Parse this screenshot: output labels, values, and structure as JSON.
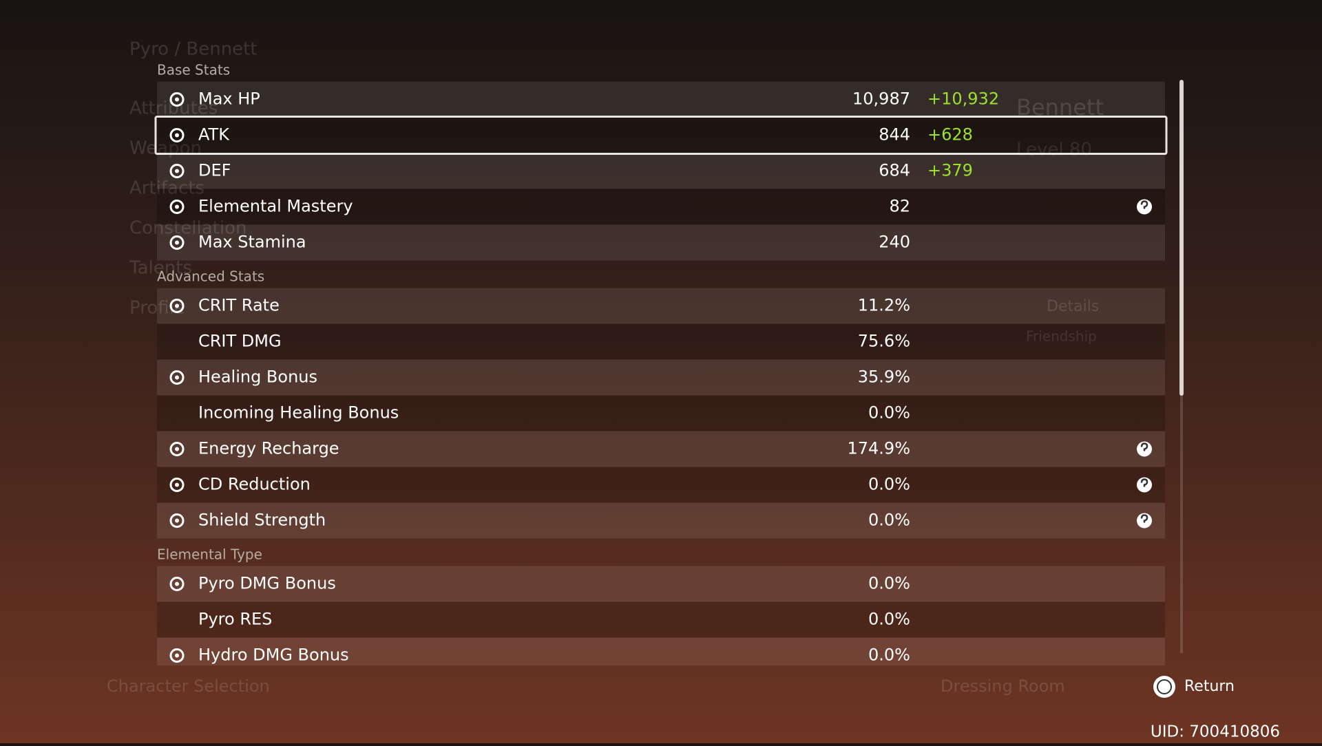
{
  "header": {
    "breadcrumb": "Pyro / Bennett"
  },
  "side_menu": [
    "Attributes",
    "Weapon",
    "Artifacts",
    "Constellation",
    "Talents",
    "Profile"
  ],
  "sections": [
    {
      "title": "Base Stats",
      "rows": [
        {
          "label": "Max HP",
          "value": "10,987",
          "bonus": "+10,932"
        },
        {
          "label": "ATK",
          "value": "844",
          "bonus": "+628"
        },
        {
          "label": "DEF",
          "value": "684",
          "bonus": "+379"
        },
        {
          "label": "Elemental Mastery",
          "value": "82"
        },
        {
          "label": "Max Stamina",
          "value": "240"
        }
      ]
    },
    {
      "title": "Advanced Stats",
      "rows": [
        {
          "label": "CRIT Rate",
          "value": "11.2%"
        },
        {
          "label": "CRIT DMG",
          "value": "75.6%"
        },
        {
          "label": "Healing Bonus",
          "value": "35.9%"
        },
        {
          "label": "Incoming Healing Bonus",
          "value": "0.0%"
        },
        {
          "label": "Energy Recharge",
          "value": "174.9%"
        },
        {
          "label": "CD Reduction",
          "value": "0.0%"
        },
        {
          "label": "Shield Strength",
          "value": "0.0%"
        }
      ]
    },
    {
      "title": "Elemental Type",
      "rows": [
        {
          "label": "Pyro DMG Bonus",
          "value": "0.0%"
        },
        {
          "label": "Pyro RES",
          "value": "0.0%"
        },
        {
          "label": "Hydro DMG Bonus",
          "value": "0.0%"
        }
      ]
    }
  ],
  "character": {
    "name": "Bennett",
    "level": "Level 80",
    "details": "Details",
    "friendship": "Friendship"
  },
  "footer": {
    "left": "Character Selection",
    "middle": "Dressing Room",
    "return": "Return",
    "uid": "UID: 700410806"
  }
}
